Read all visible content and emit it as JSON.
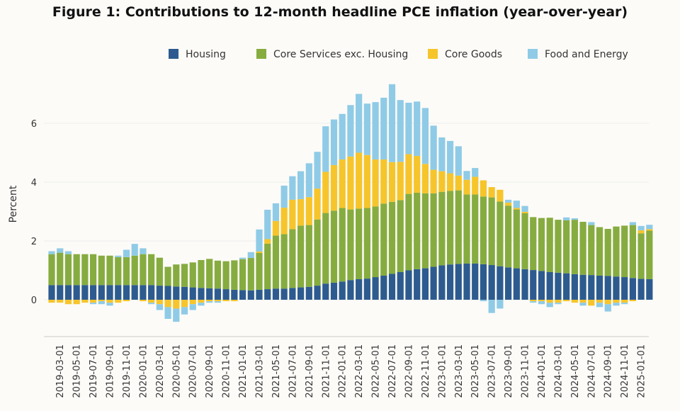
{
  "chart_data": {
    "type": "bar",
    "stacked": true,
    "title": "Figure 1: Contributions to 12-month headline PCE inflation (year-over-year)",
    "xlabel": "",
    "ylabel": "Percent",
    "ylim": [
      -1,
      7.5
    ],
    "yticks": [
      0,
      2,
      4,
      6
    ],
    "legend_position": "top-right",
    "grid": true,
    "xtick_labels": [
      "2019-03-01",
      "2019-05-01",
      "2019-07-01",
      "2019-09-01",
      "2019-11-01",
      "2020-01-01",
      "2020-03-01",
      "2020-05-01",
      "2020-07-01",
      "2020-09-01",
      "2020-11-01",
      "2021-01-01",
      "2021-03-01",
      "2021-05-01",
      "2021-07-01",
      "2021-09-01",
      "2021-11-01",
      "2022-01-01",
      "2022-03-01",
      "2022-05-01",
      "2022-07-01",
      "2022-09-01",
      "2022-11-01",
      "2023-01-01",
      "2023-03-01",
      "2023-05-01",
      "2023-07-01",
      "2023-09-01",
      "2023-11-01",
      "2024-01-01",
      "2024-03-01",
      "2024-05-01",
      "2024-07-01",
      "2024-09-01",
      "2024-11-01",
      "2025-01-01"
    ],
    "categories": [
      "2019-02",
      "2019-03",
      "2019-04",
      "2019-05",
      "2019-06",
      "2019-07",
      "2019-08",
      "2019-09",
      "2019-10",
      "2019-11",
      "2019-12",
      "2020-01",
      "2020-02",
      "2020-03",
      "2020-04",
      "2020-05",
      "2020-06",
      "2020-07",
      "2020-08",
      "2020-09",
      "2020-10",
      "2020-11",
      "2020-12",
      "2021-01",
      "2021-02",
      "2021-03",
      "2021-04",
      "2021-05",
      "2021-06",
      "2021-07",
      "2021-08",
      "2021-09",
      "2021-10",
      "2021-11",
      "2021-12",
      "2022-01",
      "2022-02",
      "2022-03",
      "2022-04",
      "2022-05",
      "2022-06",
      "2022-07",
      "2022-08",
      "2022-09",
      "2022-10",
      "2022-11",
      "2022-12",
      "2023-01",
      "2023-02",
      "2023-03",
      "2023-04",
      "2023-05",
      "2023-06",
      "2023-07",
      "2023-08",
      "2023-09",
      "2023-10",
      "2023-11",
      "2023-12",
      "2024-01",
      "2024-02",
      "2024-03",
      "2024-04",
      "2024-05",
      "2024-06",
      "2024-07",
      "2024-08",
      "2024-09",
      "2024-10",
      "2024-11",
      "2024-12",
      "2025-01",
      "2025-02"
    ],
    "series": [
      {
        "name": "Housing",
        "color": "#2d5b8f",
        "values": [
          0.5,
          0.5,
          0.5,
          0.5,
          0.5,
          0.5,
          0.5,
          0.5,
          0.5,
          0.5,
          0.5,
          0.5,
          0.5,
          0.48,
          0.47,
          0.45,
          0.44,
          0.42,
          0.4,
          0.39,
          0.38,
          0.36,
          0.34,
          0.33,
          0.32,
          0.34,
          0.36,
          0.38,
          0.38,
          0.4,
          0.42,
          0.44,
          0.48,
          0.55,
          0.58,
          0.62,
          0.67,
          0.7,
          0.72,
          0.77,
          0.82,
          0.88,
          0.94,
          1.0,
          1.04,
          1.07,
          1.12,
          1.17,
          1.2,
          1.22,
          1.23,
          1.23,
          1.21,
          1.18,
          1.14,
          1.1,
          1.07,
          1.04,
          1.01,
          0.98,
          0.94,
          0.92,
          0.9,
          0.87,
          0.85,
          0.84,
          0.82,
          0.81,
          0.79,
          0.77,
          0.74,
          0.71,
          0.7
        ]
      },
      {
        "name": "Core Services exc. Housing",
        "color": "#86ac40",
        "values": [
          1.05,
          1.1,
          1.05,
          1.05,
          1.05,
          1.05,
          1.0,
          1.0,
          0.95,
          0.95,
          1.0,
          1.05,
          1.05,
          0.95,
          0.65,
          0.75,
          0.78,
          0.85,
          0.95,
          1.0,
          0.95,
          0.95,
          1.0,
          1.05,
          1.1,
          1.25,
          1.55,
          1.8,
          1.85,
          2.0,
          2.1,
          2.1,
          2.25,
          2.4,
          2.45,
          2.5,
          2.4,
          2.4,
          2.4,
          2.4,
          2.45,
          2.45,
          2.45,
          2.6,
          2.6,
          2.55,
          2.5,
          2.5,
          2.5,
          2.5,
          2.35,
          2.35,
          2.3,
          2.3,
          2.2,
          2.1,
          2.0,
          1.9,
          1.8,
          1.8,
          1.85,
          1.8,
          1.8,
          1.85,
          1.8,
          1.7,
          1.65,
          1.6,
          1.7,
          1.75,
          1.8,
          1.55,
          1.65
        ]
      },
      {
        "name": "Core Goods",
        "color": "#f6c52b",
        "values": [
          -0.1,
          -0.1,
          -0.15,
          -0.15,
          -0.1,
          -0.1,
          -0.05,
          -0.1,
          -0.1,
          -0.05,
          0.0,
          -0.05,
          -0.1,
          -0.15,
          -0.25,
          -0.3,
          -0.25,
          -0.15,
          -0.1,
          -0.05,
          -0.05,
          -0.05,
          -0.05,
          0.0,
          0.0,
          0.05,
          0.15,
          0.5,
          0.9,
          1.0,
          0.9,
          0.95,
          1.05,
          1.4,
          1.55,
          1.65,
          1.8,
          1.9,
          1.8,
          1.6,
          1.5,
          1.35,
          1.3,
          1.35,
          1.25,
          1.0,
          0.8,
          0.7,
          0.6,
          0.5,
          0.5,
          0.6,
          0.55,
          0.35,
          0.4,
          0.1,
          0.05,
          0.05,
          -0.05,
          -0.05,
          -0.1,
          -0.1,
          -0.05,
          -0.1,
          -0.1,
          -0.2,
          -0.1,
          -0.15,
          -0.1,
          -0.1,
          -0.05,
          0.1,
          0.05
        ]
      },
      {
        "name": "Food and Energy",
        "color": "#8fcbe6",
        "values": [
          0.1,
          0.15,
          0.1,
          0.0,
          0.0,
          -0.05,
          -0.1,
          -0.1,
          0.05,
          0.25,
          0.4,
          0.2,
          -0.05,
          -0.2,
          -0.4,
          -0.45,
          -0.25,
          -0.2,
          -0.1,
          -0.05,
          -0.05,
          0.0,
          0.0,
          0.05,
          0.2,
          0.75,
          1.0,
          0.6,
          0.75,
          0.8,
          0.95,
          1.15,
          1.25,
          1.55,
          1.55,
          1.55,
          1.75,
          2.0,
          1.75,
          1.95,
          2.1,
          2.65,
          2.1,
          1.75,
          1.85,
          1.9,
          1.5,
          1.15,
          1.1,
          1.0,
          0.3,
          0.3,
          -0.05,
          -0.45,
          -0.3,
          0.1,
          0.25,
          0.2,
          -0.05,
          -0.1,
          -0.15,
          -0.05,
          0.1,
          0.05,
          -0.1,
          0.1,
          -0.15,
          -0.25,
          -0.1,
          -0.05,
          0.1,
          0.15,
          0.15
        ]
      }
    ]
  }
}
